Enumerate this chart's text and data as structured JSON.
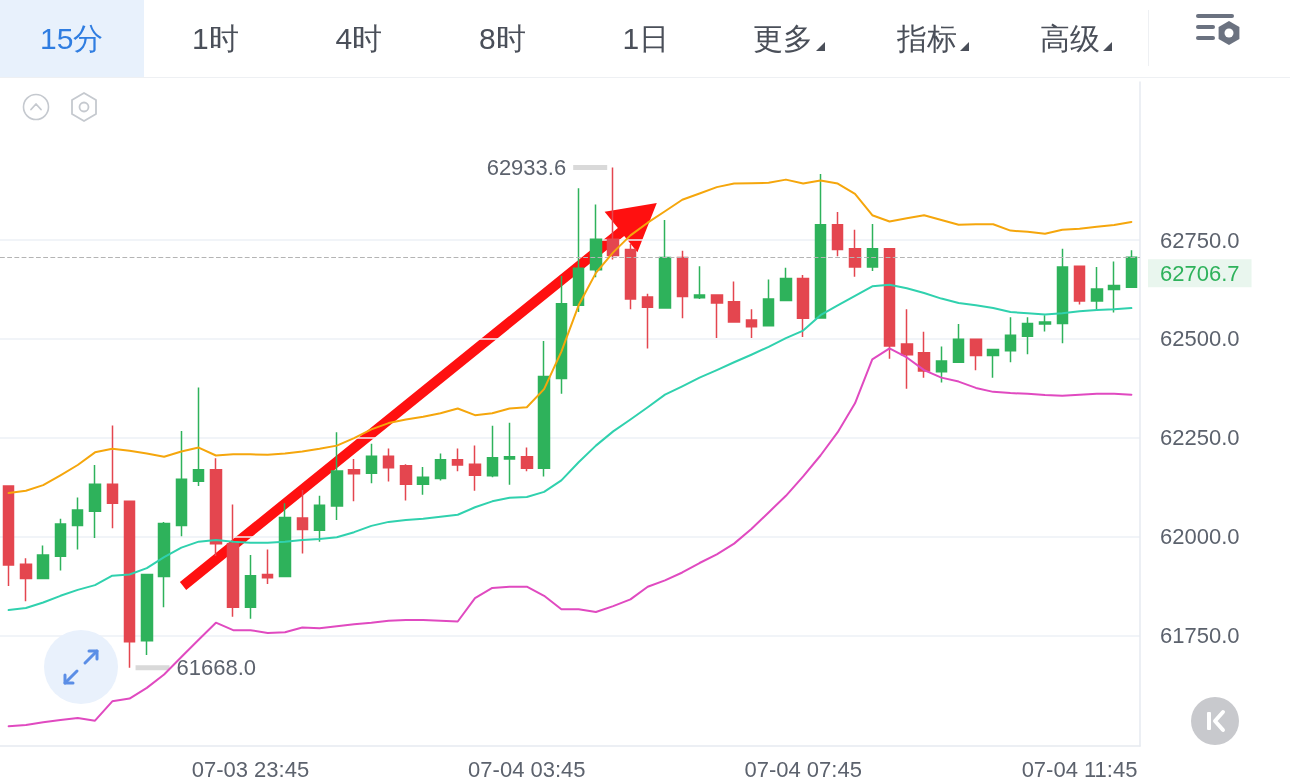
{
  "chart_data": {
    "type": "candlestick",
    "categories": [
      null,
      null,
      null,
      null,
      null,
      null,
      null,
      null,
      null,
      null,
      null,
      null,
      null,
      null,
      "07-03 23:45",
      null,
      null,
      null,
      null,
      null,
      null,
      null,
      null,
      null,
      null,
      null,
      null,
      null,
      null,
      null,
      "07-04 03:45",
      null,
      null,
      null,
      null,
      null,
      null,
      null,
      null,
      null,
      null,
      null,
      null,
      null,
      null,
      null,
      "07-04 07:45",
      null,
      null,
      null,
      null,
      null,
      null,
      null,
      null,
      null,
      null,
      null,
      null,
      null,
      null,
      null,
      "07-04 11:45",
      null,
      null,
      null
    ],
    "ohlc": [
      [
        62128,
        62128,
        61875,
        61928
      ],
      [
        61930,
        61945,
        61836,
        61894
      ],
      [
        61894,
        61977,
        61894,
        61953
      ],
      [
        61950,
        62045,
        61914,
        62032
      ],
      [
        62028,
        62099,
        61967,
        62067
      ],
      [
        62064,
        62181,
        61996,
        62132
      ],
      [
        62132,
        62281,
        62021,
        62084
      ],
      [
        62089,
        62089,
        61668.0,
        61734
      ],
      [
        61736,
        61904,
        61700,
        61904
      ],
      [
        61899,
        62037,
        61821,
        62033
      ],
      [
        62028,
        62267,
        62001,
        62145
      ],
      [
        62140,
        62377,
        62128,
        62169
      ],
      [
        62169,
        62198,
        61951,
        61982
      ],
      [
        61982,
        62081,
        61797,
        61821
      ],
      [
        61821,
        61953,
        61792,
        61901
      ],
      [
        61904,
        61967,
        61880,
        61896
      ],
      [
        61899,
        62084,
        61899,
        62048
      ],
      [
        62047,
        62118,
        61957,
        62018
      ],
      [
        62016,
        62103,
        61987,
        62079
      ],
      [
        62077,
        62264,
        62042,
        62166
      ],
      [
        62169,
        62196,
        62089,
        62159
      ],
      [
        62160,
        62235,
        62135,
        62203
      ],
      [
        62203,
        62223,
        62139,
        62174
      ],
      [
        62179,
        62183,
        62091,
        62132
      ],
      [
        62132,
        62176,
        62106,
        62150
      ],
      [
        62147,
        62210,
        62142,
        62194
      ],
      [
        62194,
        62223,
        62165,
        62181
      ],
      [
        62183,
        62230,
        62116,
        62155
      ],
      [
        62154,
        62280,
        62150,
        62199
      ],
      [
        62196,
        62288,
        62131,
        62202
      ],
      [
        62202,
        62225,
        62165,
        62173
      ],
      [
        62173,
        62495,
        62152,
        62405
      ],
      [
        62400,
        62659,
        62361,
        62589
      ],
      [
        62585,
        62881,
        62568,
        62679
      ],
      [
        62675,
        62840,
        62656,
        62752
      ],
      [
        62752,
        62933.6,
        62701,
        62711
      ],
      [
        62726,
        62740,
        62575,
        62601
      ],
      [
        62606,
        62614,
        62476,
        62580
      ],
      [
        62578,
        62801,
        62578,
        62706
      ],
      [
        62706,
        62723,
        62552,
        62607
      ],
      [
        62604,
        62684,
        62601,
        62611
      ],
      [
        62611,
        62611,
        62502,
        62591
      ],
      [
        62594,
        62645,
        62543,
        62543
      ],
      [
        62548,
        62575,
        62502,
        62531
      ],
      [
        62533,
        62650,
        62533,
        62601
      ],
      [
        62597,
        62680,
        62597,
        62653
      ],
      [
        62653,
        62662,
        62505,
        62552
      ],
      [
        62553,
        62917,
        62553,
        62789
      ],
      [
        62789,
        62821,
        62709,
        62726
      ],
      [
        62728,
        62776,
        62657,
        62682
      ],
      [
        62682,
        62791,
        62672,
        62728
      ],
      [
        62728,
        62728,
        62450,
        62482
      ],
      [
        62487,
        62575,
        62374,
        62460
      ],
      [
        62465,
        62518,
        62402,
        62419
      ],
      [
        62417,
        62481,
        62390,
        62444
      ],
      [
        62441,
        62538,
        62441,
        62499
      ],
      [
        62499,
        62499,
        62421,
        62458
      ],
      [
        62458,
        62473,
        62402,
        62473
      ],
      [
        62470,
        62555,
        62441,
        62509
      ],
      [
        62507,
        62555,
        62461,
        62539
      ],
      [
        62538,
        62560,
        62519,
        62543
      ],
      [
        62539,
        62728,
        62489,
        62682
      ],
      [
        62684,
        62684,
        62587,
        62596
      ],
      [
        62596,
        62682,
        62575,
        62626
      ],
      [
        62625,
        62696,
        62567,
        62635
      ],
      [
        62631,
        62724,
        62631,
        62706.7
      ]
    ],
    "colors": [
      "#e4464f",
      "#e4464f",
      "#2eb25b",
      "#2eb25b",
      "#2eb25b",
      "#2eb25b",
      "#e4464f",
      "#e4464f",
      "#2eb25b",
      "#2eb25b",
      "#2eb25b",
      "#2eb25b",
      "#e4464f",
      "#e4464f",
      "#2eb25b",
      "#e4464f",
      "#2eb25b",
      "#e4464f",
      "#2eb25b",
      "#2eb25b",
      "#e4464f",
      "#2eb25b",
      "#e4464f",
      "#e4464f",
      "#2eb25b",
      "#2eb25b",
      "#e4464f",
      "#e4464f",
      "#2eb25b",
      "#2eb25b",
      "#e4464f",
      "#2eb25b",
      "#2eb25b",
      "#2eb25b",
      "#2eb25b",
      "#e4464f",
      "#e4464f",
      "#e4464f",
      "#2eb25b",
      "#e4464f",
      "#2eb25b",
      "#e4464f",
      "#e4464f",
      "#e4464f",
      "#2eb25b",
      "#2eb25b",
      "#e4464f",
      "#2eb25b",
      "#e4464f",
      "#e4464f",
      "#2eb25b",
      "#e4464f",
      "#e4464f",
      "#e4464f",
      "#2eb25b",
      "#2eb25b",
      "#e4464f",
      "#2eb25b",
      "#2eb25b",
      "#2eb25b",
      "#2eb25b",
      "#2eb25b",
      "#e4464f",
      "#2eb25b",
      "#2eb25b",
      "#2eb25b"
    ],
    "series": [
      {
        "type": "line",
        "color": "#f5a60c",
        "values": [
          62110,
          62116,
          62130,
          62155,
          62181,
          62213,
          62222,
          62217,
          62210,
          62202,
          62215,
          62225,
          62205,
          62208,
          62208,
          62207,
          62210,
          62215,
          62222,
          62230,
          62249,
          62271,
          62287,
          62296,
          62303,
          62312,
          62324,
          62307,
          62312,
          62324,
          62327,
          62373,
          62468,
          62585,
          62667,
          62719,
          62762,
          62794,
          62823,
          62852,
          62868,
          62884,
          62893,
          62894,
          62895,
          62903,
          62893,
          62901,
          62893,
          62867,
          62813,
          62797,
          62805,
          62813,
          62801,
          62789,
          62790,
          62790,
          62774,
          62771,
          62766,
          62776,
          62779,
          62784,
          62788,
          62796
        ]
      },
      {
        "type": "line",
        "color": "#30d1ae",
        "values": [
          61814,
          61819,
          61833,
          61850,
          61865,
          61877,
          61901,
          61904,
          61920,
          61948,
          61972,
          61987,
          61991,
          61987,
          61984,
          61984,
          61987,
          61991,
          61994,
          61998,
          62011,
          62027,
          62037,
          62042,
          62045,
          62050,
          62055,
          62074,
          62089,
          62098,
          62100,
          62113,
          62142,
          62188,
          62230,
          62266,
          62296,
          62327,
          62359,
          62380,
          62402,
          62421,
          62441,
          62460,
          62480,
          62502,
          62521,
          62560,
          62585,
          62609,
          62633,
          62637,
          62628,
          62616,
          62602,
          62591,
          62585,
          62578,
          62568,
          62565,
          62562,
          62565,
          62570,
          62573,
          62575,
          62578
        ]
      },
      {
        "type": "line",
        "color": "#e04ac0",
        "values": [
          61520,
          61523,
          61530,
          61536,
          61541,
          61534,
          61583,
          61590,
          61617,
          61651,
          61695,
          61739,
          61782,
          61763,
          61763,
          61756,
          61758,
          61770,
          61768,
          61773,
          61778,
          61782,
          61787,
          61789,
          61789,
          61787,
          61785,
          61844,
          61870,
          61873,
          61873,
          61850,
          61816,
          61816,
          61809,
          61824,
          61841,
          61873,
          61889,
          61909,
          61933,
          61955,
          61982,
          62019,
          62061,
          62103,
          62152,
          62205,
          62264,
          62337,
          62448,
          62476,
          62453,
          62421,
          62402,
          62392,
          62376,
          62366,
          62363,
          62361,
          62358,
          62356,
          62359,
          62361,
          62361,
          62359
        ]
      }
    ],
    "ylim": [
      61470,
      63150
    ],
    "yticks": [
      {
        "value": 61750,
        "label": "61750.0"
      },
      {
        "value": 62000,
        "label": "62000.0"
      },
      {
        "value": 62250,
        "label": "62250.0"
      },
      {
        "value": 62500,
        "label": "62500.0"
      },
      {
        "value": 62750,
        "label": "62750.0"
      }
    ],
    "grid": "y",
    "ref_lines": [
      {
        "axis": "y",
        "value": 62706.7,
        "label": "62706.7",
        "color": "#b4b4b4",
        "line_style": "dashed"
      }
    ],
    "annotations": [
      "15分",
      "1时",
      "4时",
      "8时",
      "1日",
      "更多",
      "指标",
      "高级",
      "62933.6",
      "61668.0"
    ]
  }
}
